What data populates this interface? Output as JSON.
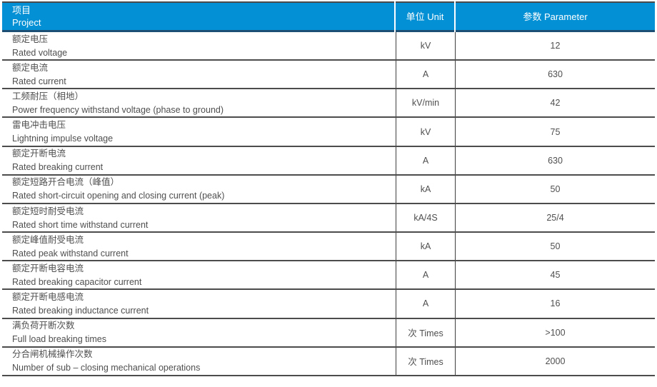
{
  "colors": {
    "header_bg": "#0490D4",
    "header_top_border": "#4A4A4A",
    "header_bottom_border": "#1D4E74",
    "grid_line": "#4C4C4C",
    "header_text": "#FFFFFF",
    "body_text": "#4F4F4F"
  },
  "table": {
    "header": {
      "project_zh": "项目",
      "project_en": "Project",
      "unit_label": "单位 Unit",
      "parameter_label": "参数 Parameter"
    },
    "rows": [
      {
        "zh": "额定电压",
        "en": "Rated voltage",
        "unit": "kV",
        "value": "12"
      },
      {
        "zh": "额定电流",
        "en": "Rated current",
        "unit": "A",
        "value": "630"
      },
      {
        "zh": "工频耐压（相地）",
        "en": "Power frequency withstand voltage (phase to ground)",
        "unit": "kV/min",
        "value": "42"
      },
      {
        "zh": "雷电冲击电压",
        "en": "Lightning impulse voltage",
        "unit": "kV",
        "value": "75"
      },
      {
        "zh": "额定开断电流",
        "en": "Rated breaking current",
        "unit": "A",
        "value": "630"
      },
      {
        "zh": "额定短路开合电流（峰值）",
        "en": "Rated short-circuit opening and closing current (peak)",
        "unit": "kA",
        "value": "50"
      },
      {
        "zh": "额定短时耐受电流",
        "en": "Rated short time withstand current",
        "unit": "kA/4S",
        "value": "25/4"
      },
      {
        "zh": "额定峰值耐受电流",
        "en": "Rated peak withstand current",
        "unit": "kA",
        "value": "50"
      },
      {
        "zh": "额定开断电容电流",
        "en": "Rated breaking capacitor current",
        "unit": "A",
        "value": "45"
      },
      {
        "zh": "额定开断电感电流",
        "en": "Rated breaking inductance current",
        "unit": "A",
        "value": "16"
      },
      {
        "zh": "满负荷开断次数",
        "en": "Full load breaking times",
        "unit": "次 Times",
        "value": ">100"
      },
      {
        "zh": "分合闸机械操作次数",
        "en": "Number of sub – closing mechanical operations",
        "unit": "次 Times",
        "value": "2000"
      }
    ]
  }
}
